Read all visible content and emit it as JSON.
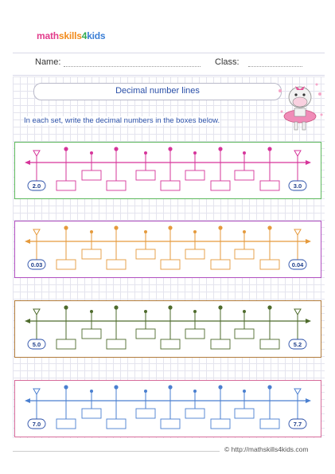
{
  "header": {
    "logo_parts": [
      "math",
      "skills",
      "4",
      "kids"
    ],
    "name_label": "Name:",
    "class_label": "Class:"
  },
  "worksheet": {
    "title": "Decimal number lines",
    "instructions": "In each set, write the decimal numbers in the boxes below."
  },
  "number_lines": [
    {
      "start": "2.0",
      "end": "3.0",
      "color": "#d6349a",
      "border": "#5cb85c"
    },
    {
      "start": "0.03",
      "end": "0.04",
      "color": "#e59a3c",
      "border": "#b04fc0"
    },
    {
      "start": "5.0",
      "end": "5.2",
      "color": "#4e6b2c",
      "border": "#b07a3a"
    },
    {
      "start": "7.0",
      "end": "7.7",
      "color": "#4a7fd0",
      "border": "#d66a9a"
    }
  ],
  "footer": {
    "copyright": "© http://mathskills4kids.com"
  },
  "mascot": {
    "icon": "hippo-ballerina-icon"
  }
}
